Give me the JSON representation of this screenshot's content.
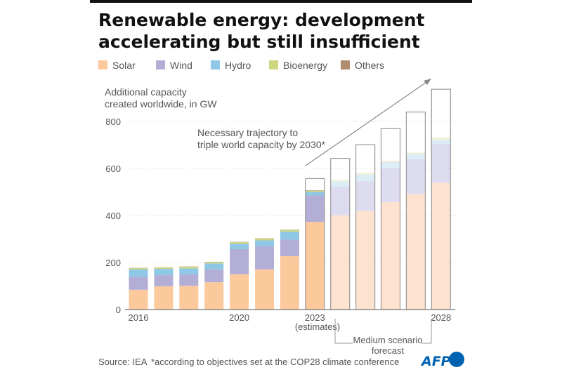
{
  "title_line1": "Renewable energy: development",
  "title_line2": "accelerating but still insufficient",
  "unit_line1": "Additional capacity",
  "unit_line2": "created worldwide, in GW",
  "trajectory_line1": "Necessary trajectory to",
  "trajectory_line2": "triple world capacity by 2030*",
  "estimates_note": "(estimates)",
  "forecast_line1": "Medium scenario",
  "forecast_line2": "forecast",
  "source": "Source: IEA",
  "footnote": "*according to objectives set at the COP28 climate conference",
  "logo": "AFP",
  "colors": {
    "Solar": "#fcc99c",
    "Wind": "#b3aed6",
    "Hydro": "#8ec8e6",
    "Bioenergy": "#cdd67f",
    "Others": "#b08d6e",
    "Solar_forecast": "#fde2cf",
    "Wind_forecast": "#dddbf0",
    "Hydro_forecast": "#dcedf6",
    "Bioenergy_forecast": "#eff2cf",
    "Others_forecast": "#e6dcd2",
    "logo": "#0063b1"
  },
  "chart_data": {
    "type": "bar",
    "stacked": true,
    "ylabel": "Additional capacity created worldwide, in GW",
    "ylim": [
      0,
      950
    ],
    "yticks": [
      0,
      200,
      400,
      600,
      800
    ],
    "grid": true,
    "legend": "top",
    "categories": [
      "2016",
      "2017",
      "2018",
      "2019",
      "2020",
      "2021",
      "2022",
      "2023",
      "2024",
      "2025",
      "2026",
      "2027",
      "2028"
    ],
    "xtick_labels": {
      "2016": "2016",
      "2020": "2020",
      "2023": "2023",
      "2028": "2028"
    },
    "forecast_categories": [
      "2024",
      "2025",
      "2026",
      "2027",
      "2028"
    ],
    "series": [
      {
        "name": "Solar",
        "values": [
          84,
          99,
          101,
          116,
          150,
          171,
          227,
          373,
          401,
          420,
          457,
          492,
          539
        ]
      },
      {
        "name": "Wind",
        "values": [
          55,
          47,
          48,
          55,
          107,
          98,
          70,
          112,
          120,
          126,
          144,
          148,
          165
        ]
      },
      {
        "name": "Hydro",
        "values": [
          32,
          27,
          26,
          25,
          23,
          25,
          35,
          15,
          24,
          28,
          26,
          22,
          19
        ]
      },
      {
        "name": "Bioenergy",
        "values": [
          5,
          5,
          7,
          6,
          7,
          8,
          7,
          5,
          4,
          5,
          5,
          4,
          7
        ]
      },
      {
        "name": "Others",
        "values": [
          1,
          1,
          1,
          1,
          1,
          1,
          1,
          2,
          1,
          1,
          1,
          1,
          1
        ]
      }
    ],
    "trajectory": {
      "name": "Necessary trajectory to triple world capacity by 2030*",
      "categories": [
        "2023",
        "2024",
        "2025",
        "2026",
        "2027",
        "2028"
      ],
      "values": [
        557,
        643,
        701,
        769,
        840,
        937
      ]
    }
  }
}
